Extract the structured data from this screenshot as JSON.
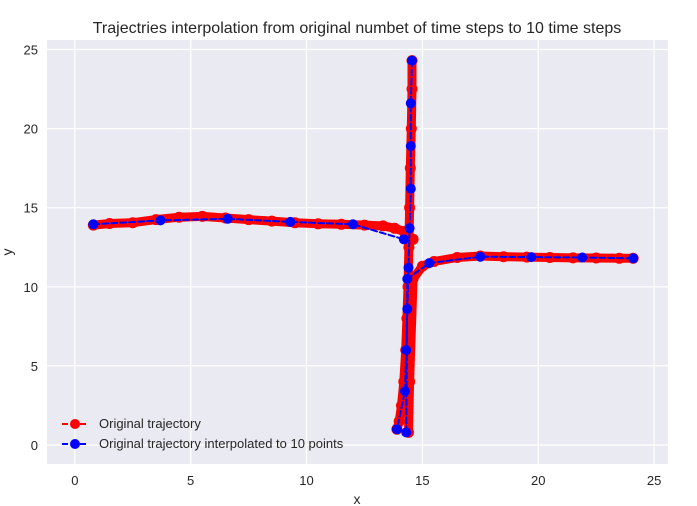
{
  "chart_data": {
    "type": "line",
    "title": "Trajectries interpolation from original numbet of time steps to 10 time steps",
    "xlabel": "x",
    "ylabel": "y",
    "xlim": [
      -1.2,
      25.6
    ],
    "ylim": [
      -1.2,
      25.6
    ],
    "x_ticks": [
      0,
      5,
      10,
      15,
      20,
      25
    ],
    "y_ticks": [
      0,
      5,
      10,
      15,
      20,
      25
    ],
    "grid": true,
    "legend_position": "lower-left",
    "series": [
      {
        "name": "Original trajectory",
        "color": "#ff0000",
        "linestyle": "dashed",
        "marker": "circle",
        "segments": [
          {
            "x": [
              0.8,
              1.5,
              2.5,
              3.5,
              4.5,
              5.5,
              6.5,
              7.5,
              8.5,
              9.5,
              10.5,
              11.5,
              12.5,
              13.3,
              13.8,
              14.2,
              14.4,
              14.6
            ],
            "y": [
              13.9,
              14.0,
              14.05,
              14.25,
              14.4,
              14.45,
              14.35,
              14.25,
              14.15,
              14.05,
              13.98,
              13.95,
              13.9,
              13.85,
              13.7,
              13.5,
              13.2,
              13.0
            ]
          },
          {
            "x": [
              14.55,
              14.55,
              14.52,
              14.48,
              14.45,
              14.42,
              14.38,
              14.33,
              14.28,
              14.2,
              14.1,
              14.0,
              13.9
            ],
            "y": [
              24.3,
              22.5,
              20.0,
              17.5,
              15.0,
              12.5,
              10.0,
              8.0,
              6.0,
              4.0,
              2.5,
              1.5,
              1.0
            ]
          },
          {
            "x": [
              14.4,
              14.45,
              14.6,
              15.0,
              15.5,
              16.5,
              17.5,
              18.5,
              19.5,
              20.5,
              21.5,
              22.5,
              23.5,
              24.1
            ],
            "y": [
              0.8,
              4.0,
              10.5,
              11.3,
              11.6,
              11.85,
              11.95,
              11.9,
              11.88,
              11.85,
              11.83,
              11.82,
              11.8,
              11.8
            ]
          }
        ]
      },
      {
        "name": "Original trajectory interpolated to 10 points",
        "color": "#0000ff",
        "linestyle": "dashed",
        "marker": "circle",
        "segments": [
          {
            "x": [
              0.8,
              3.7,
              6.6,
              9.3,
              12.0,
              14.2
            ],
            "y": [
              13.95,
              14.2,
              14.3,
              14.1,
              13.95,
              13.0
            ]
          },
          {
            "x": [
              14.55,
              14.5,
              14.5,
              14.5,
              14.45,
              14.4,
              14.35,
              14.3,
              14.25,
              13.9
            ],
            "y": [
              24.3,
              21.6,
              18.9,
              16.2,
              13.7,
              11.2,
              8.6,
              6.0,
              3.4,
              1.0
            ]
          },
          {
            "x": [
              14.3,
              14.35,
              15.3,
              17.5,
              19.7,
              21.9,
              24.1
            ],
            "y": [
              0.8,
              10.5,
              11.5,
              11.9,
              11.88,
              11.85,
              11.8
            ]
          }
        ]
      }
    ]
  }
}
